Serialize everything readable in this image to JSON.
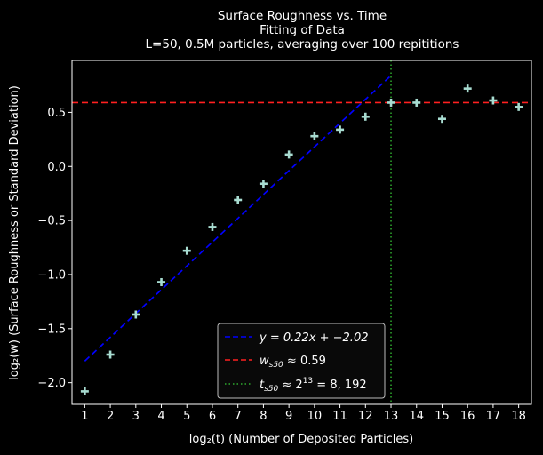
{
  "chart_data": {
    "type": "scatter",
    "title_lines": [
      "Surface Roughness vs. Time",
      "Fitting of Data",
      "L=50, 0.5M particles, averaging over 100 repititions"
    ],
    "xlabel": "log₂(t) (Number of Deposited Particles)",
    "ylabel": "log₂(w) (Surface Roughness or Standard Deviation)",
    "xlim": [
      0.5,
      18.5
    ],
    "ylim": [
      -2.2,
      0.98
    ],
    "xticks": [
      1,
      2,
      3,
      4,
      5,
      6,
      7,
      8,
      9,
      10,
      11,
      12,
      13,
      14,
      15,
      16,
      17,
      18
    ],
    "yticks": [
      -2.0,
      -1.5,
      -1.0,
      -0.5,
      0.0,
      0.5
    ],
    "ytick_labels": [
      "−2.0",
      "−1.5",
      "−1.0",
      "−0.5",
      "0.0",
      "0.5"
    ],
    "grid": false,
    "legend_position": "bottom-center",
    "series": [
      {
        "kind": "points",
        "marker": "plus",
        "color": "#a8dcd1",
        "x": [
          1,
          2,
          3,
          4,
          5,
          6,
          7,
          8,
          9,
          10,
          11,
          12,
          13,
          14,
          15,
          16,
          17,
          18
        ],
        "y": [
          -2.08,
          -1.74,
          -1.37,
          -1.07,
          -0.78,
          -0.56,
          -0.31,
          -0.16,
          0.11,
          0.28,
          0.34,
          0.46,
          0.59,
          0.59,
          0.44,
          0.72,
          0.61,
          0.55
        ]
      },
      {
        "kind": "fit-line",
        "label": "y = 0.22x + −2.02",
        "color": "#0000ff",
        "style": "dashed",
        "slope": 0.22,
        "intercept": -2.02,
        "x_range": [
          1,
          13
        ]
      },
      {
        "kind": "hline",
        "label": "w_s50 ≈ 0.59",
        "color": "#ff2020",
        "style": "dashed",
        "y": 0.59
      },
      {
        "kind": "vline",
        "label": "t_s50 ≈ 2^13 = 8, 192",
        "color": "#2eaa2e",
        "style": "dotted",
        "x": 13
      }
    ],
    "legend": {
      "fit": {
        "main": "y = 0.22x + −2.02"
      },
      "wsat": {
        "var": "w",
        "sub": "s50",
        "rest": " ≈ 0.59"
      },
      "tsat": {
        "var": "t",
        "sub": "s50",
        "mid": " ≈ 2",
        "sup": "13",
        "rest": " = 8, 192"
      }
    }
  }
}
